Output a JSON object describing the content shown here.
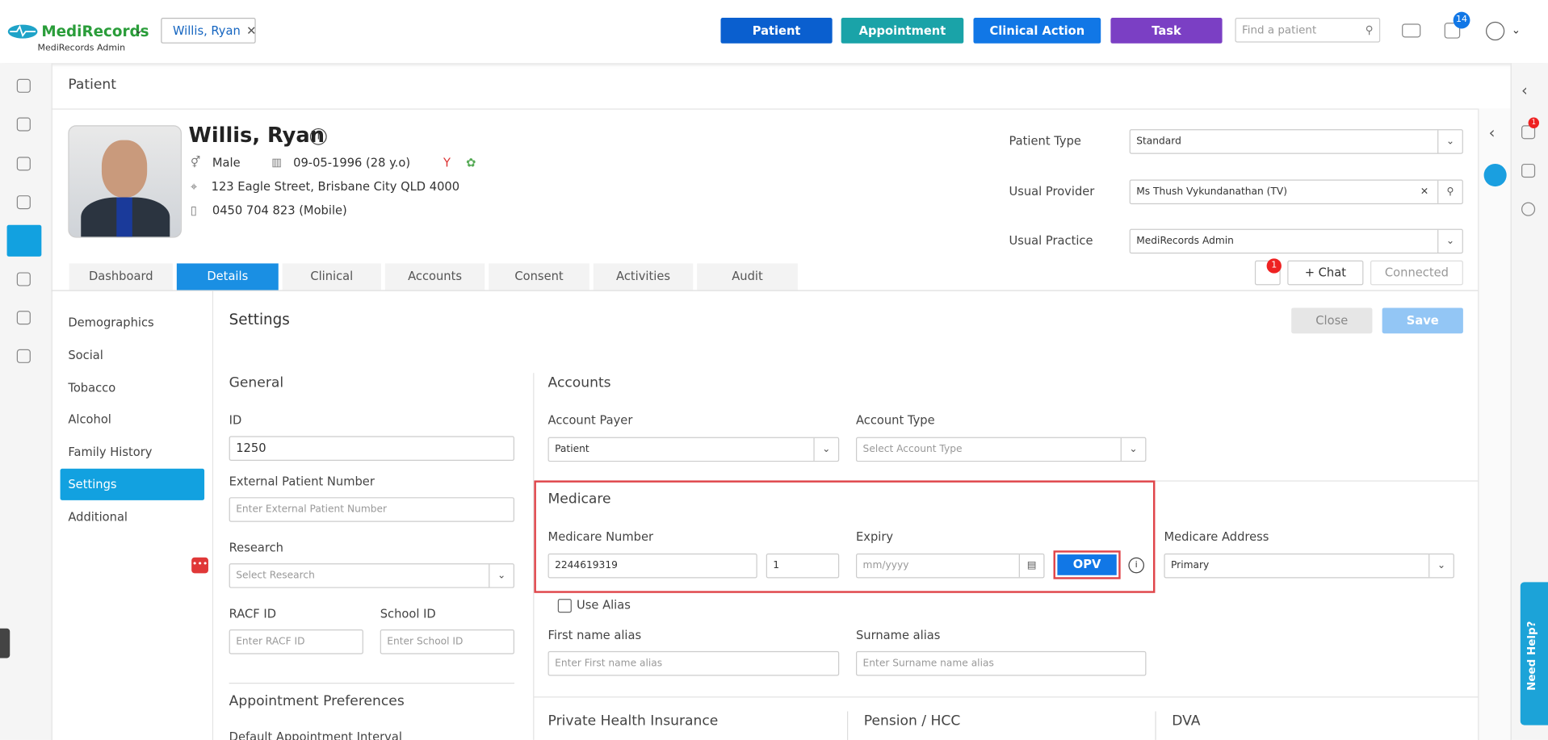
{
  "app": {
    "brand": "MediRecords",
    "org": "MediRecords Admin",
    "open_tab": "Willis, Ryan",
    "actions": [
      "Patient",
      "Appointment",
      "Clinical Action",
      "Task"
    ],
    "search_placeholder": "Find a patient",
    "task_count": 14
  },
  "page_title": "Patient",
  "patient": {
    "name": "Willis, Ryan",
    "gender": "Male",
    "dob": "09-05-1996 (28 y.o)",
    "address": "123 Eagle Street, Brisbane City QLD 4000",
    "phone": "0450 704 823 (Mobile)"
  },
  "summary_fields": [
    {
      "label": "Patient Type",
      "value": "Standard"
    },
    {
      "label": "Usual Provider",
      "value": "Ms Thush Vykundanathan (TV)"
    },
    {
      "label": "Usual Practice",
      "value": "MediRecords Admin"
    }
  ],
  "tabs": [
    "Dashboard",
    "Details",
    "Clinical",
    "Accounts",
    "Consent",
    "Activities",
    "Audit"
  ],
  "chat": {
    "unread": 1,
    "chat": "Chat",
    "status": "Connected"
  },
  "side_menu": [
    "Demographics",
    "Social",
    "Tobacco",
    "Alcohol",
    "Family History",
    "Settings",
    "Additional"
  ],
  "settings": {
    "title": "Settings",
    "close": "Close",
    "save": "Save"
  },
  "general": {
    "title": "General",
    "id_label": "ID",
    "id": "1250",
    "external_label": "External Patient Number",
    "external_placeholder": "Enter External Patient Number",
    "research_label": "Research",
    "research_placeholder": "Select Research",
    "racf_label": "RACF ID",
    "racf_placeholder": "Enter RACF ID",
    "school_label": "School ID",
    "school_placeholder": "Enter School ID",
    "appointment_title": "Appointment Preferences",
    "interval_label": "Default Appointment Interval"
  },
  "accounts": {
    "title": "Accounts",
    "payer_label": "Account Payer",
    "payer": "Patient",
    "type_label": "Account Type",
    "type_placeholder": "Select Account Type"
  },
  "medicare": {
    "title": "Medicare",
    "number_label": "Medicare Number",
    "number": "2244619319",
    "irn": "1",
    "expiry_label": "Expiry",
    "expiry_placeholder": "mm/yyyy",
    "opv": "OPV",
    "address_label": "Medicare Address",
    "address": "Primary",
    "alias_label": "Use Alias",
    "first_alias_label": "First name alias",
    "first_alias_placeholder": "Enter First name alias",
    "surname_alias_label": "Surname alias",
    "surname_alias_placeholder": "Enter Surname name alias"
  },
  "sections": [
    "Private Health Insurance",
    "Pension / HCC",
    "DVA"
  ],
  "help": "Need Help?",
  "right_rail_badge": 1
}
